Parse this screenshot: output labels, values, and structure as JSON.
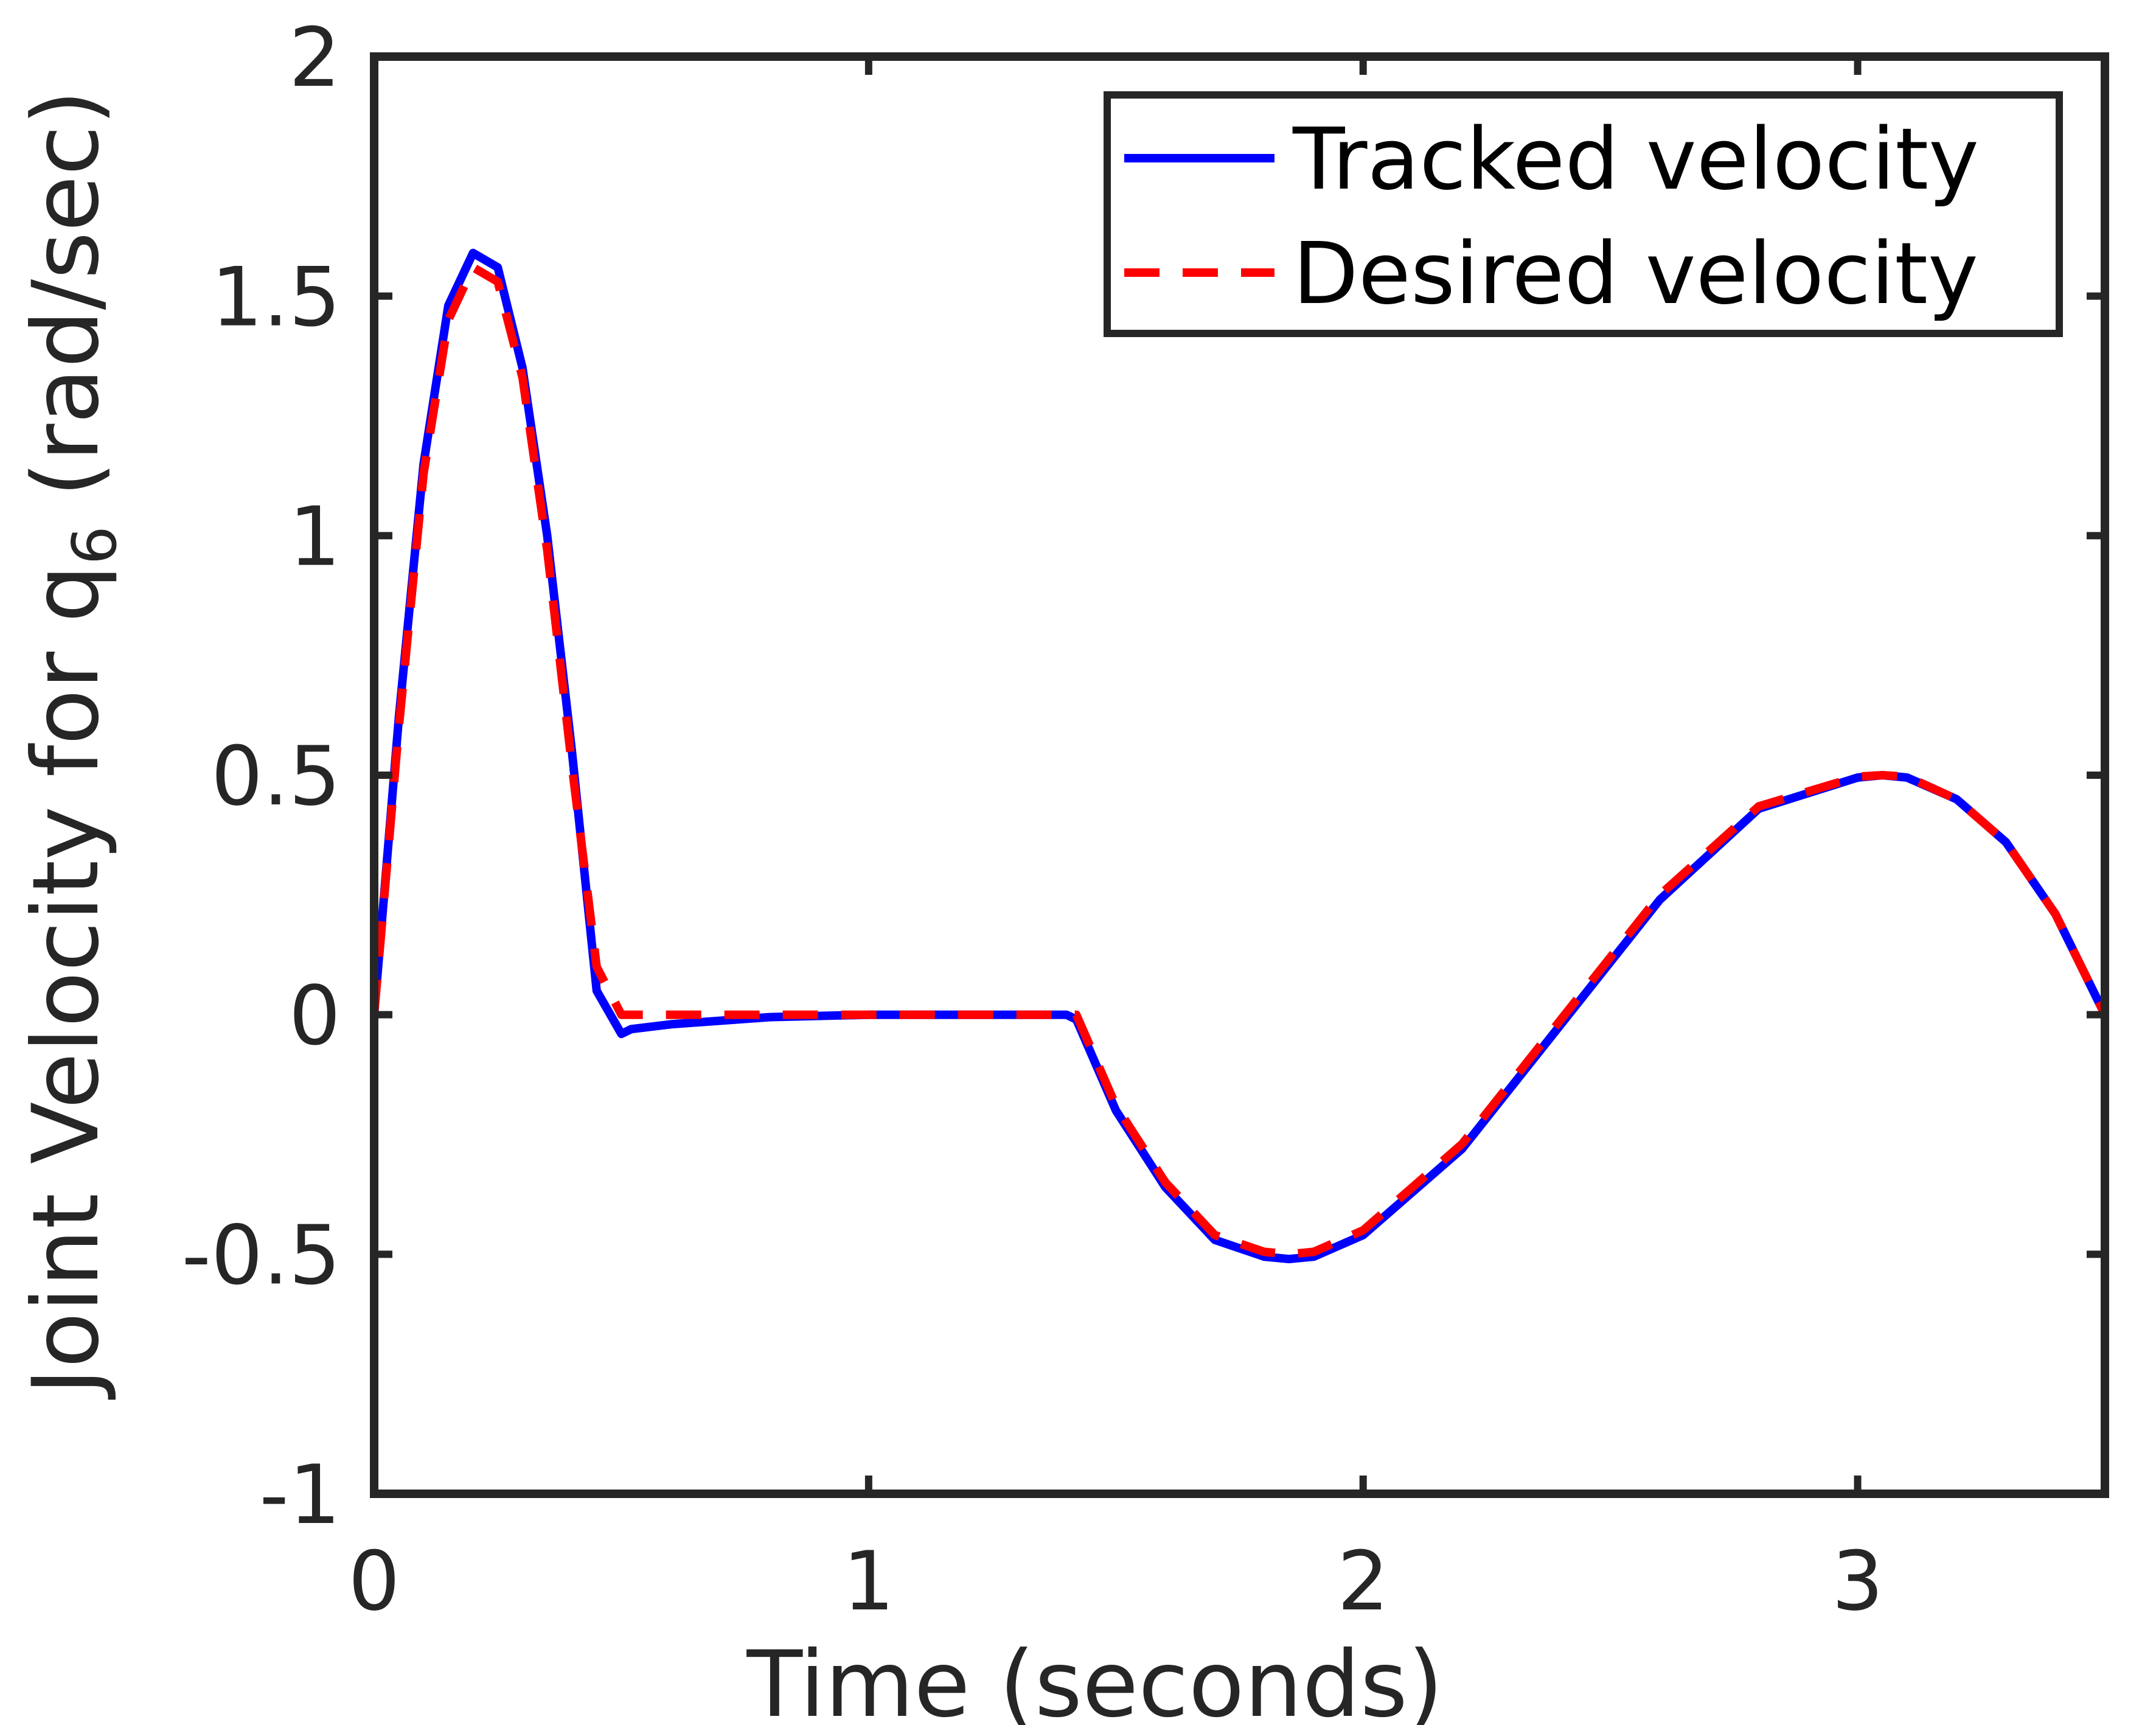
{
  "chart_data": {
    "type": "line",
    "title": "",
    "xlabel": "Time (seconds)",
    "ylabel": "Joint Velocity for q",
    "ylabel_subscript": "6",
    "ylabel_unit": "(rad/sec)",
    "xlim": [
      0,
      3.5
    ],
    "ylim": [
      -1,
      2
    ],
    "xticks": [
      0,
      1,
      2,
      3
    ],
    "xtick_labels": [
      "0",
      "1",
      "2",
      "3"
    ],
    "yticks": [
      -1,
      -0.5,
      0,
      0.5,
      1,
      1.5,
      2
    ],
    "ytick_labels": [
      "-1",
      "-0.5",
      "0",
      "0.5",
      "1",
      "1.5",
      "2"
    ],
    "grid": false,
    "legend_position": "top-right",
    "series": [
      {
        "name": "Tracked velocity",
        "color": "#0000ff",
        "style": "solid",
        "x": [
          0,
          0.05,
          0.1,
          0.15,
          0.2,
          0.25,
          0.3,
          0.35,
          0.4,
          0.45,
          0.5,
          0.52,
          0.6,
          0.8,
          1.0,
          1.2,
          1.4,
          1.42,
          1.5,
          1.6,
          1.7,
          1.8,
          1.85,
          1.9,
          2.0,
          2.2,
          2.4,
          2.6,
          2.8,
          3.0,
          3.05,
          3.1,
          3.2,
          3.3,
          3.4,
          3.5
        ],
        "y": [
          0,
          0.62,
          1.15,
          1.48,
          1.59,
          1.56,
          1.35,
          1.0,
          0.55,
          0.05,
          -0.04,
          -0.03,
          -0.02,
          -0.005,
          0,
          0,
          0,
          -0.01,
          -0.2,
          -0.36,
          -0.47,
          -0.505,
          -0.51,
          -0.505,
          -0.46,
          -0.28,
          -0.02,
          0.24,
          0.43,
          0.495,
          0.5,
          0.495,
          0.45,
          0.36,
          0.21,
          0
        ]
      },
      {
        "name": "Desired velocity",
        "color": "#ff0000",
        "style": "dashed",
        "x": [
          0,
          0.05,
          0.1,
          0.15,
          0.2,
          0.25,
          0.3,
          0.35,
          0.4,
          0.45,
          0.5,
          0.52,
          0.6,
          0.8,
          1.0,
          1.2,
          1.4,
          1.42,
          1.5,
          1.6,
          1.7,
          1.8,
          1.85,
          1.9,
          2.0,
          2.2,
          2.4,
          2.6,
          2.8,
          3.0,
          3.05,
          3.1,
          3.2,
          3.3,
          3.4,
          3.5
        ],
        "y": [
          0,
          0.6,
          1.13,
          1.45,
          1.56,
          1.53,
          1.33,
          0.97,
          0.52,
          0.1,
          0,
          0,
          0,
          0,
          0,
          0,
          0,
          0,
          -0.19,
          -0.35,
          -0.46,
          -0.495,
          -0.5,
          -0.495,
          -0.45,
          -0.27,
          -0.01,
          0.25,
          0.435,
          0.497,
          0.5,
          0.497,
          0.45,
          0.36,
          0.21,
          0
        ]
      }
    ]
  }
}
